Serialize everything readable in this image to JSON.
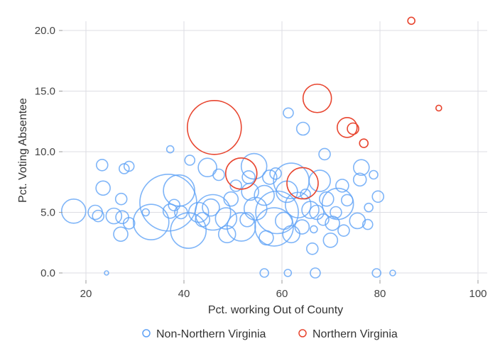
{
  "chart_data": {
    "type": "scatter",
    "subtype": "bubble",
    "xlabel": "Pct. working Out of County",
    "ylabel": "Pct. Voting Absentee",
    "xlim": [
      15,
      102
    ],
    "ylim": [
      -0.6,
      20.8
    ],
    "xticks": [
      20,
      40,
      60,
      80,
      100
    ],
    "xtick_labels": [
      "20",
      "40",
      "60",
      "80",
      "100"
    ],
    "yticks": [
      0,
      5,
      10,
      15,
      20
    ],
    "ytick_labels": [
      "0.0",
      "5.0",
      "10.0",
      "15.0",
      "20.0"
    ],
    "grid": true,
    "legend_position": "bottom",
    "point_format": [
      "x",
      "y",
      "size"
    ],
    "series": [
      {
        "name": "Non-Northern Virginia",
        "color": "#5fa2f6",
        "points": [
          [
            17.5,
            5.1,
            17
          ],
          [
            21.9,
            5.0,
            10
          ],
          [
            22.5,
            4.7,
            8
          ],
          [
            23.5,
            7.0,
            10
          ],
          [
            23.3,
            8.9,
            8
          ],
          [
            25.7,
            4.7,
            11
          ],
          [
            27.4,
            4.6,
            9
          ],
          [
            27.2,
            6.1,
            8
          ],
          [
            28.8,
            8.8,
            7
          ],
          [
            27.8,
            8.6,
            7
          ],
          [
            27.1,
            3.2,
            10
          ],
          [
            28.8,
            4.1,
            8
          ],
          [
            32.2,
            5.0,
            5
          ],
          [
            33.3,
            4.2,
            25
          ],
          [
            36.8,
            5.8,
            40
          ],
          [
            39.0,
            6.8,
            22
          ],
          [
            37.2,
            10.2,
            5
          ],
          [
            41.2,
            9.3,
            7
          ],
          [
            40.9,
            3.5,
            25
          ],
          [
            37.2,
            5.1,
            10
          ],
          [
            38.0,
            5.6,
            8
          ],
          [
            39.4,
            5.0,
            9
          ],
          [
            44.8,
            8.7,
            13
          ],
          [
            47.1,
            8.1,
            8
          ],
          [
            45.5,
            5.4,
            12
          ],
          [
            45.9,
            5.0,
            25
          ],
          [
            48.6,
            4.5,
            15
          ],
          [
            51.7,
            3.8,
            20
          ],
          [
            54.3,
            8.8,
            18
          ],
          [
            53.2,
            7.9,
            9
          ],
          [
            50.6,
            7.2,
            8
          ],
          [
            56.4,
            6.4,
            14
          ],
          [
            54.6,
            5.3,
            16
          ],
          [
            59.0,
            5.0,
            30
          ],
          [
            58.4,
            3.8,
            27
          ],
          [
            61.9,
            7.6,
            25
          ],
          [
            61.0,
            6.7,
            15
          ],
          [
            58.7,
            8.2,
            8
          ],
          [
            63.3,
            5.6,
            18
          ],
          [
            60.4,
            4.3,
            12
          ],
          [
            65.8,
            5.2,
            12
          ],
          [
            64.8,
            6.5,
            7
          ],
          [
            67.1,
            5.0,
            10
          ],
          [
            69.1,
            6.1,
            10
          ],
          [
            71.4,
            5.7,
            22
          ],
          [
            72.3,
            7.2,
            9
          ],
          [
            73.3,
            6.0,
            8
          ],
          [
            75.4,
            4.3,
            11
          ],
          [
            77.5,
            4.0,
            7
          ],
          [
            76.2,
            8.7,
            11
          ],
          [
            75.9,
            7.7,
            9
          ],
          [
            78.7,
            8.1,
            6
          ],
          [
            79.6,
            6.3,
            8
          ],
          [
            77.7,
            5.4,
            6
          ],
          [
            72.6,
            3.5,
            8
          ],
          [
            70.3,
            4.1,
            10
          ],
          [
            66.5,
            3.6,
            5
          ],
          [
            68.4,
            4.4,
            8
          ],
          [
            61.3,
            13.2,
            7
          ],
          [
            64.3,
            11.9,
            9
          ],
          [
            68.7,
            9.8,
            8
          ],
          [
            57.5,
            7.9,
            10
          ],
          [
            53.5,
            6.7,
            12
          ],
          [
            49.6,
            6.1,
            10
          ],
          [
            43.0,
            5.0,
            14
          ],
          [
            43.8,
            4.4,
            10
          ],
          [
            48.8,
            3.2,
            12
          ],
          [
            52.9,
            4.4,
            10
          ],
          [
            56.8,
            2.9,
            10
          ],
          [
            61.9,
            3.2,
            12
          ],
          [
            66.2,
            2.0,
            8
          ],
          [
            64.1,
            3.8,
            10
          ],
          [
            69.9,
            2.7,
            10
          ],
          [
            71.0,
            5.0,
            8
          ],
          [
            67.7,
            7.6,
            15
          ],
          [
            24.2,
            0,
            3
          ],
          [
            56.4,
            0,
            6
          ],
          [
            61.2,
            0,
            5
          ],
          [
            66.8,
            0,
            7
          ],
          [
            79.3,
            0,
            6
          ],
          [
            82.6,
            0,
            4
          ]
        ]
      },
      {
        "name": "Northern Virginia",
        "color": "#e8452f",
        "points": [
          [
            46.2,
            12.0,
            38
          ],
          [
            67.2,
            14.4,
            20
          ],
          [
            73.3,
            12.0,
            14
          ],
          [
            74.5,
            11.9,
            8
          ],
          [
            76.7,
            10.7,
            6
          ],
          [
            51.7,
            8.2,
            22
          ],
          [
            64.2,
            7.4,
            22
          ],
          [
            86.4,
            20.8,
            5
          ],
          [
            92.0,
            13.6,
            4
          ]
        ]
      }
    ]
  }
}
